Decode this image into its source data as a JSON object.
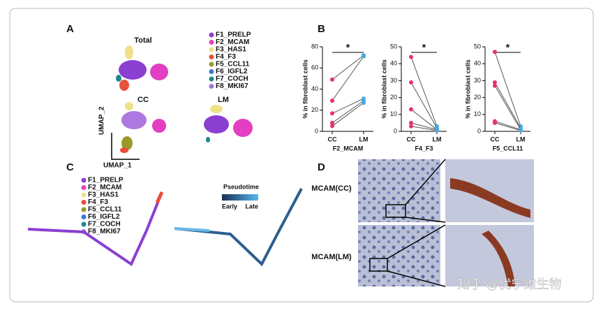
{
  "panel_a": {
    "letter": "A",
    "titles": [
      "Total",
      "CC",
      "LM"
    ],
    "axis_labels": [
      "UMAP_2",
      "UMAP_1"
    ],
    "legend": [
      {
        "name": "F1_PRELP",
        "color": "#8a3fd1"
      },
      {
        "name": "F2_MCAM",
        "color": "#e23fc3"
      },
      {
        "name": "F3_HAS1",
        "color": "#efe08a"
      },
      {
        "name": "F4_F3",
        "color": "#e8503a"
      },
      {
        "name": "F5_CCL11",
        "color": "#9a9a2a"
      },
      {
        "name": "F6_IGFL2",
        "color": "#3a7ad8"
      },
      {
        "name": "F7_COCH",
        "color": "#1a8a8a"
      },
      {
        "name": "F8_MKI67",
        "color": "#9a7ad8"
      }
    ]
  },
  "panel_b": {
    "letter": "B"
  },
  "chart_data": [
    {
      "type": "paired",
      "xlabel": "F2_MCAM",
      "ylabel": "% in fibroblast cells",
      "significance": "*",
      "categories": [
        "CC",
        "LM"
      ],
      "point_colors": [
        "#e6336d",
        "#4aa8e0"
      ],
      "line_color": "#555555",
      "ylim": [
        0,
        80
      ],
      "yticks": [
        0,
        20,
        40,
        60,
        80
      ],
      "series": [
        {
          "values": [
            49,
            72
          ]
        },
        {
          "values": [
            29,
            71
          ]
        },
        {
          "values": [
            17,
            31
          ]
        },
        {
          "values": [
            8,
            29
          ]
        },
        {
          "values": [
            5,
            27
          ]
        }
      ]
    },
    {
      "type": "paired",
      "xlabel": "F4_F3",
      "ylabel": "% in fibroblast cells",
      "significance": "*",
      "categories": [
        "CC",
        "LM"
      ],
      "point_colors": [
        "#e6336d",
        "#4aa8e0"
      ],
      "line_color": "#555555",
      "ylim": [
        0,
        50
      ],
      "yticks": [
        0,
        10,
        20,
        30,
        40,
        50
      ],
      "series": [
        {
          "values": [
            44,
            3
          ]
        },
        {
          "values": [
            29,
            2
          ]
        },
        {
          "values": [
            13,
            1
          ]
        },
        {
          "values": [
            5,
            1
          ]
        },
        {
          "values": [
            3,
            0.5
          ]
        }
      ]
    },
    {
      "type": "paired",
      "xlabel": "F5_CCL11",
      "ylabel": "% in fibroblast cells",
      "significance": "*",
      "categories": [
        "CC",
        "LM"
      ],
      "point_colors": [
        "#e6336d",
        "#4aa8e0"
      ],
      "line_color": "#555555",
      "ylim": [
        0,
        50
      ],
      "yticks": [
        0,
        10,
        20,
        30,
        40,
        50
      ],
      "series": [
        {
          "values": [
            47,
            3
          ]
        },
        {
          "values": [
            29,
            2
          ]
        },
        {
          "values": [
            27,
            1
          ]
        },
        {
          "values": [
            6,
            1
          ]
        },
        {
          "values": [
            5,
            0.5
          ]
        }
      ]
    }
  ],
  "panel_c": {
    "letter": "C",
    "colorbar": {
      "title": "Pseudotime",
      "labels": [
        "Early",
        "Late"
      ]
    }
  },
  "panel_d": {
    "letter": "D",
    "labels": [
      "MCAM(CC)",
      "MCAM(LM)"
    ]
  },
  "watermark": "知乎 @优宁维生物"
}
